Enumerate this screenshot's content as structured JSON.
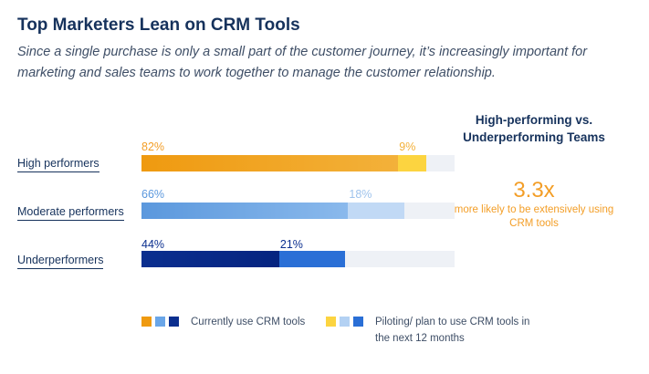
{
  "header": {
    "title": "Top Marketers Lean on CRM Tools",
    "subtitle": "Since a single purchase is only a small part of the customer journey, it’s increasingly important for marketing and sales teams to work together to manage the customer relationship."
  },
  "chart_data": {
    "type": "bar",
    "orientation": "horizontal",
    "stacked": true,
    "categories": [
      "High performers",
      "Moderate performers",
      "Underperformers"
    ],
    "series": [
      {
        "name": "Currently use CRM tools",
        "values": [
          82,
          66,
          44
        ],
        "labels": [
          "82%",
          "66%",
          "44%"
        ]
      },
      {
        "name": "Piloting/ plan to use CRM tools in the next 12 months",
        "values": [
          9,
          18,
          21
        ],
        "labels": [
          "9%",
          "18%",
          "21%"
        ]
      }
    ],
    "xlim": [
      0,
      100
    ],
    "colors": {
      "current": [
        "#ef9a10",
        "#5b98dd",
        "#0b2f8f"
      ],
      "current_end": [
        "#f3b13a",
        "#8ab9ec",
        "#062480"
      ],
      "planned": [
        "#fcd440",
        "#c1d9f5",
        "#2a6fd6"
      ],
      "track": "#eef1f6",
      "label": [
        "#f39e27",
        "#5b98dd",
        "#0b2f8f"
      ]
    }
  },
  "callout": {
    "title": "High-performing vs. Underperforming Teams",
    "number": "3.3x",
    "text": "more likely to be extensively using CRM tools"
  },
  "legend": {
    "current_label": "Currently use CRM tools",
    "planned_label": "Piloting/ plan to use CRM tools in the next 12 months",
    "current_colors": [
      "#ef9a10",
      "#6aa6e8",
      "#0b2f8f"
    ],
    "planned_colors": [
      "#fcd440",
      "#b3d1f3",
      "#2a6fd6"
    ]
  }
}
